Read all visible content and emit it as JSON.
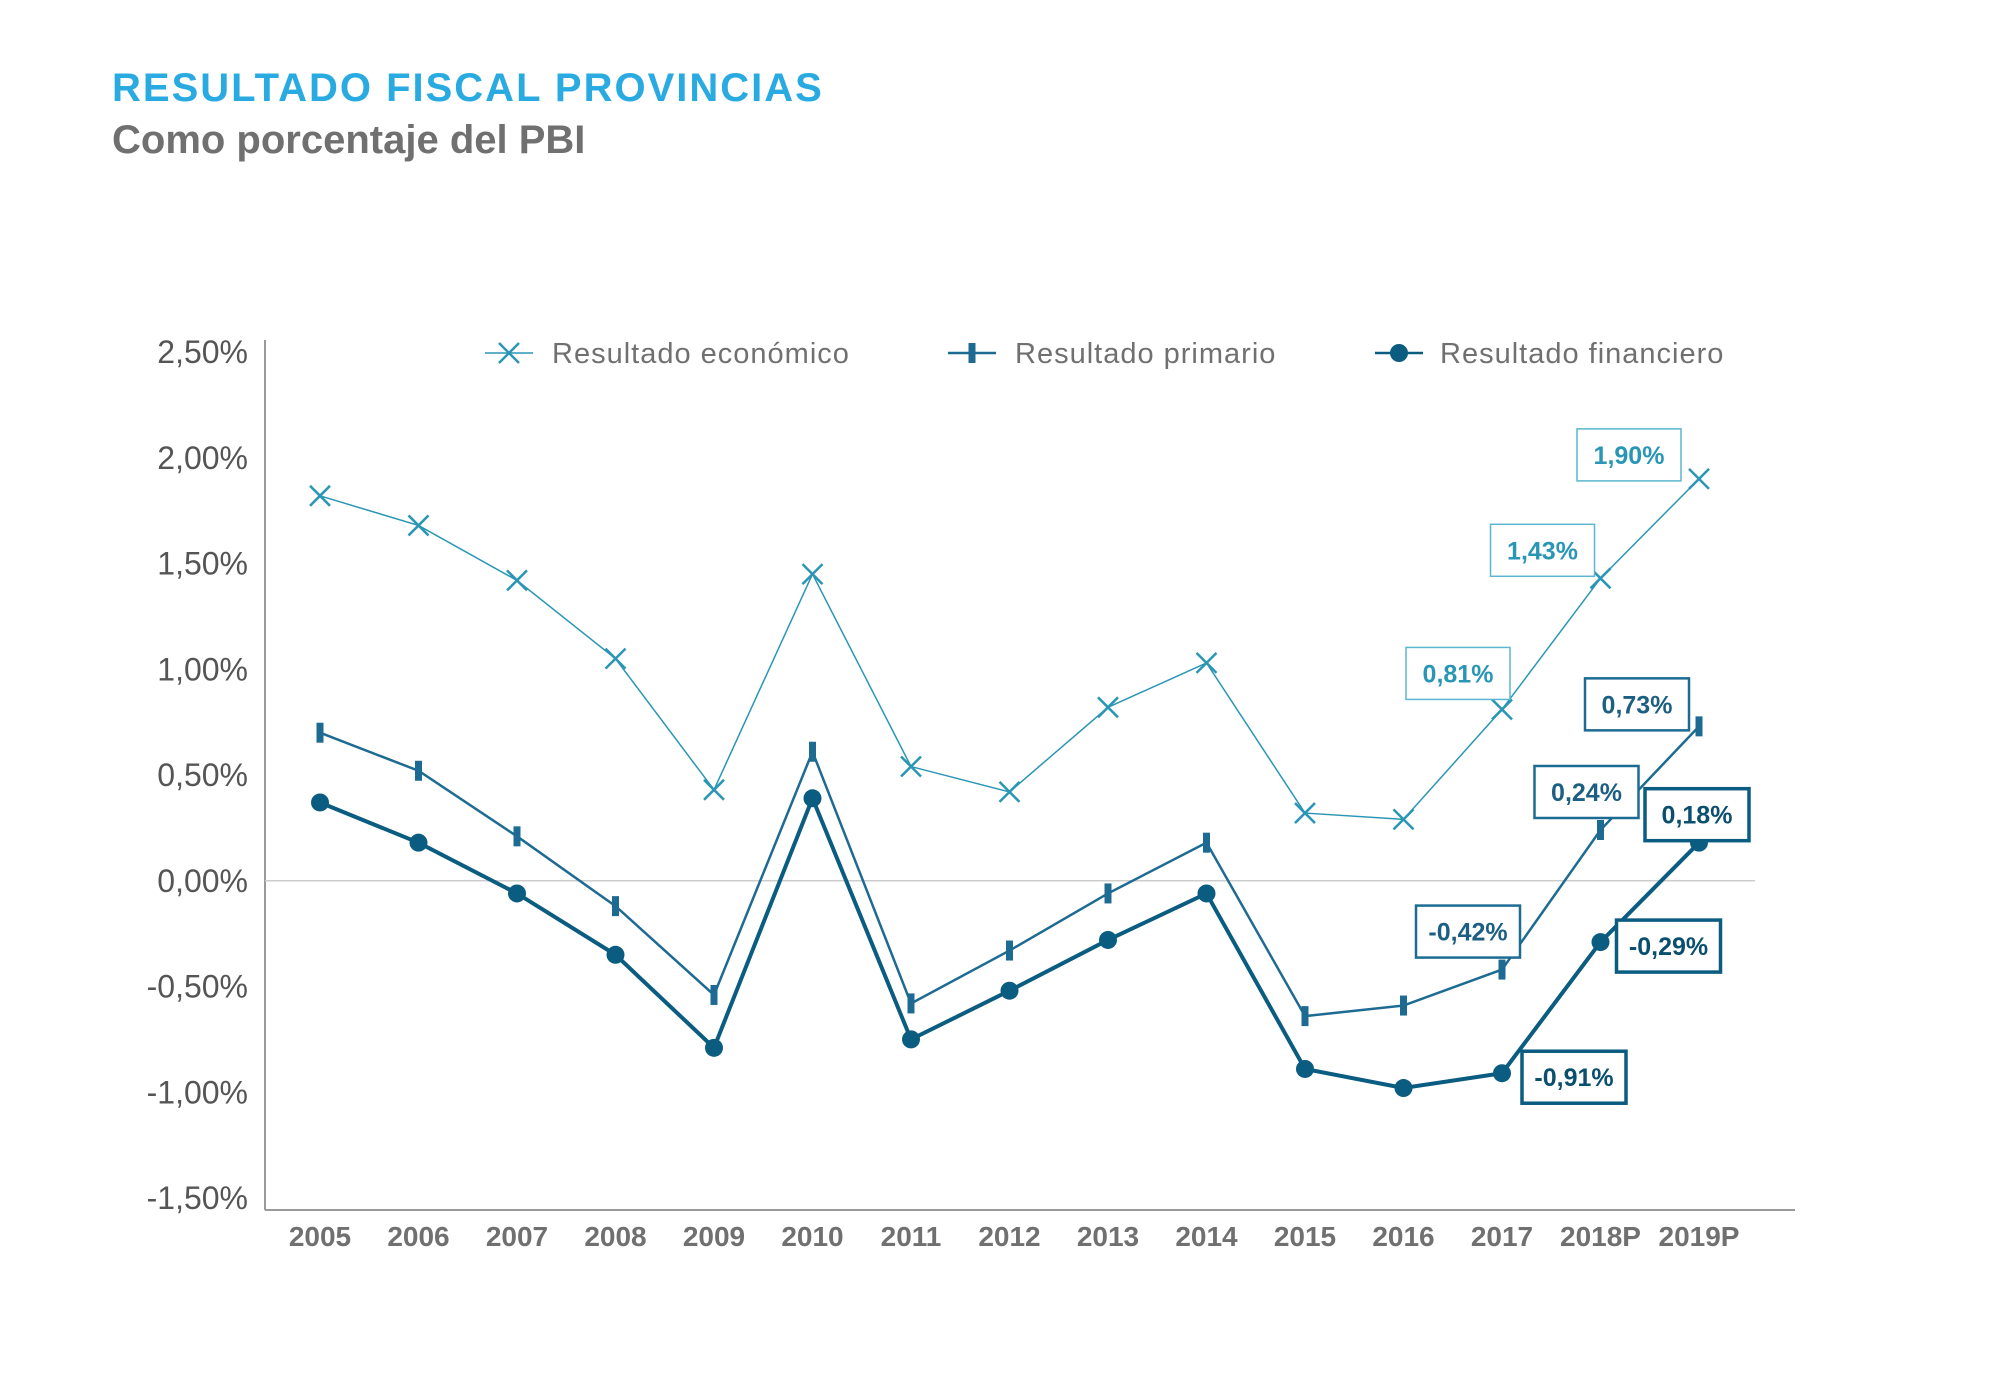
{
  "title": "RESULTADO FISCAL PROVINCIAS",
  "subtitle": "Como porcentaje del PBI",
  "chart_data": {
    "type": "line",
    "categories": [
      "2005",
      "2006",
      "2007",
      "2008",
      "2009",
      "2010",
      "2011",
      "2012",
      "2013",
      "2014",
      "2015",
      "2016",
      "2017",
      "2018P",
      "2019P"
    ],
    "ylim": [
      -1.5,
      2.5
    ],
    "yticks": [
      -1.5,
      -1.0,
      -0.5,
      0.0,
      0.5,
      1.0,
      1.5,
      2.0,
      2.5
    ],
    "ytick_labels": [
      "-1,50%",
      "-1,00%",
      "-0,50%",
      "0,00%",
      "0,50%",
      "1,00%",
      "1,50%",
      "2,00%",
      "2,50%"
    ],
    "legend_position": "top",
    "colors": {
      "economico": "#2a96b5",
      "primario": "#1d6b92",
      "financiero": "#0a5c80",
      "zero_line": "#cccccc",
      "axis": "#999999"
    },
    "series": [
      {
        "key": "economico",
        "name": "Resultado económico",
        "marker": "cross",
        "values": [
          1.82,
          1.68,
          1.42,
          1.05,
          0.43,
          1.45,
          0.54,
          0.42,
          0.82,
          1.03,
          0.32,
          0.29,
          0.81,
          1.43,
          1.9
        ]
      },
      {
        "key": "primario",
        "name": "Resultado primario",
        "marker": "tick",
        "values": [
          0.7,
          0.52,
          0.21,
          -0.12,
          -0.54,
          0.61,
          -0.58,
          -0.33,
          -0.06,
          0.18,
          -0.64,
          -0.59,
          -0.42,
          0.24,
          0.73
        ]
      },
      {
        "key": "financiero",
        "name": "Resultado financiero",
        "marker": "circle",
        "values": [
          0.37,
          0.18,
          -0.06,
          -0.35,
          -0.79,
          0.39,
          -0.75,
          -0.52,
          -0.28,
          -0.06,
          -0.89,
          -0.98,
          -0.91,
          -0.29,
          0.18
        ]
      }
    ],
    "annotations": [
      {
        "series": "economico",
        "category": "2017",
        "label": "0,81%"
      },
      {
        "series": "economico",
        "category": "2018P",
        "label": "1,43%"
      },
      {
        "series": "economico",
        "category": "2019P",
        "label": "1,90%"
      },
      {
        "series": "primario",
        "category": "2017",
        "label": "-0,42%"
      },
      {
        "series": "primario",
        "category": "2018P",
        "label": "0,24%"
      },
      {
        "series": "primario",
        "category": "2019P",
        "label": "0,73%"
      },
      {
        "series": "financiero",
        "category": "2017",
        "label": "-0,91%"
      },
      {
        "series": "financiero",
        "category": "2018P",
        "label": "-0,29%"
      },
      {
        "series": "financiero",
        "category": "2019P",
        "label": "0,18%"
      }
    ]
  }
}
